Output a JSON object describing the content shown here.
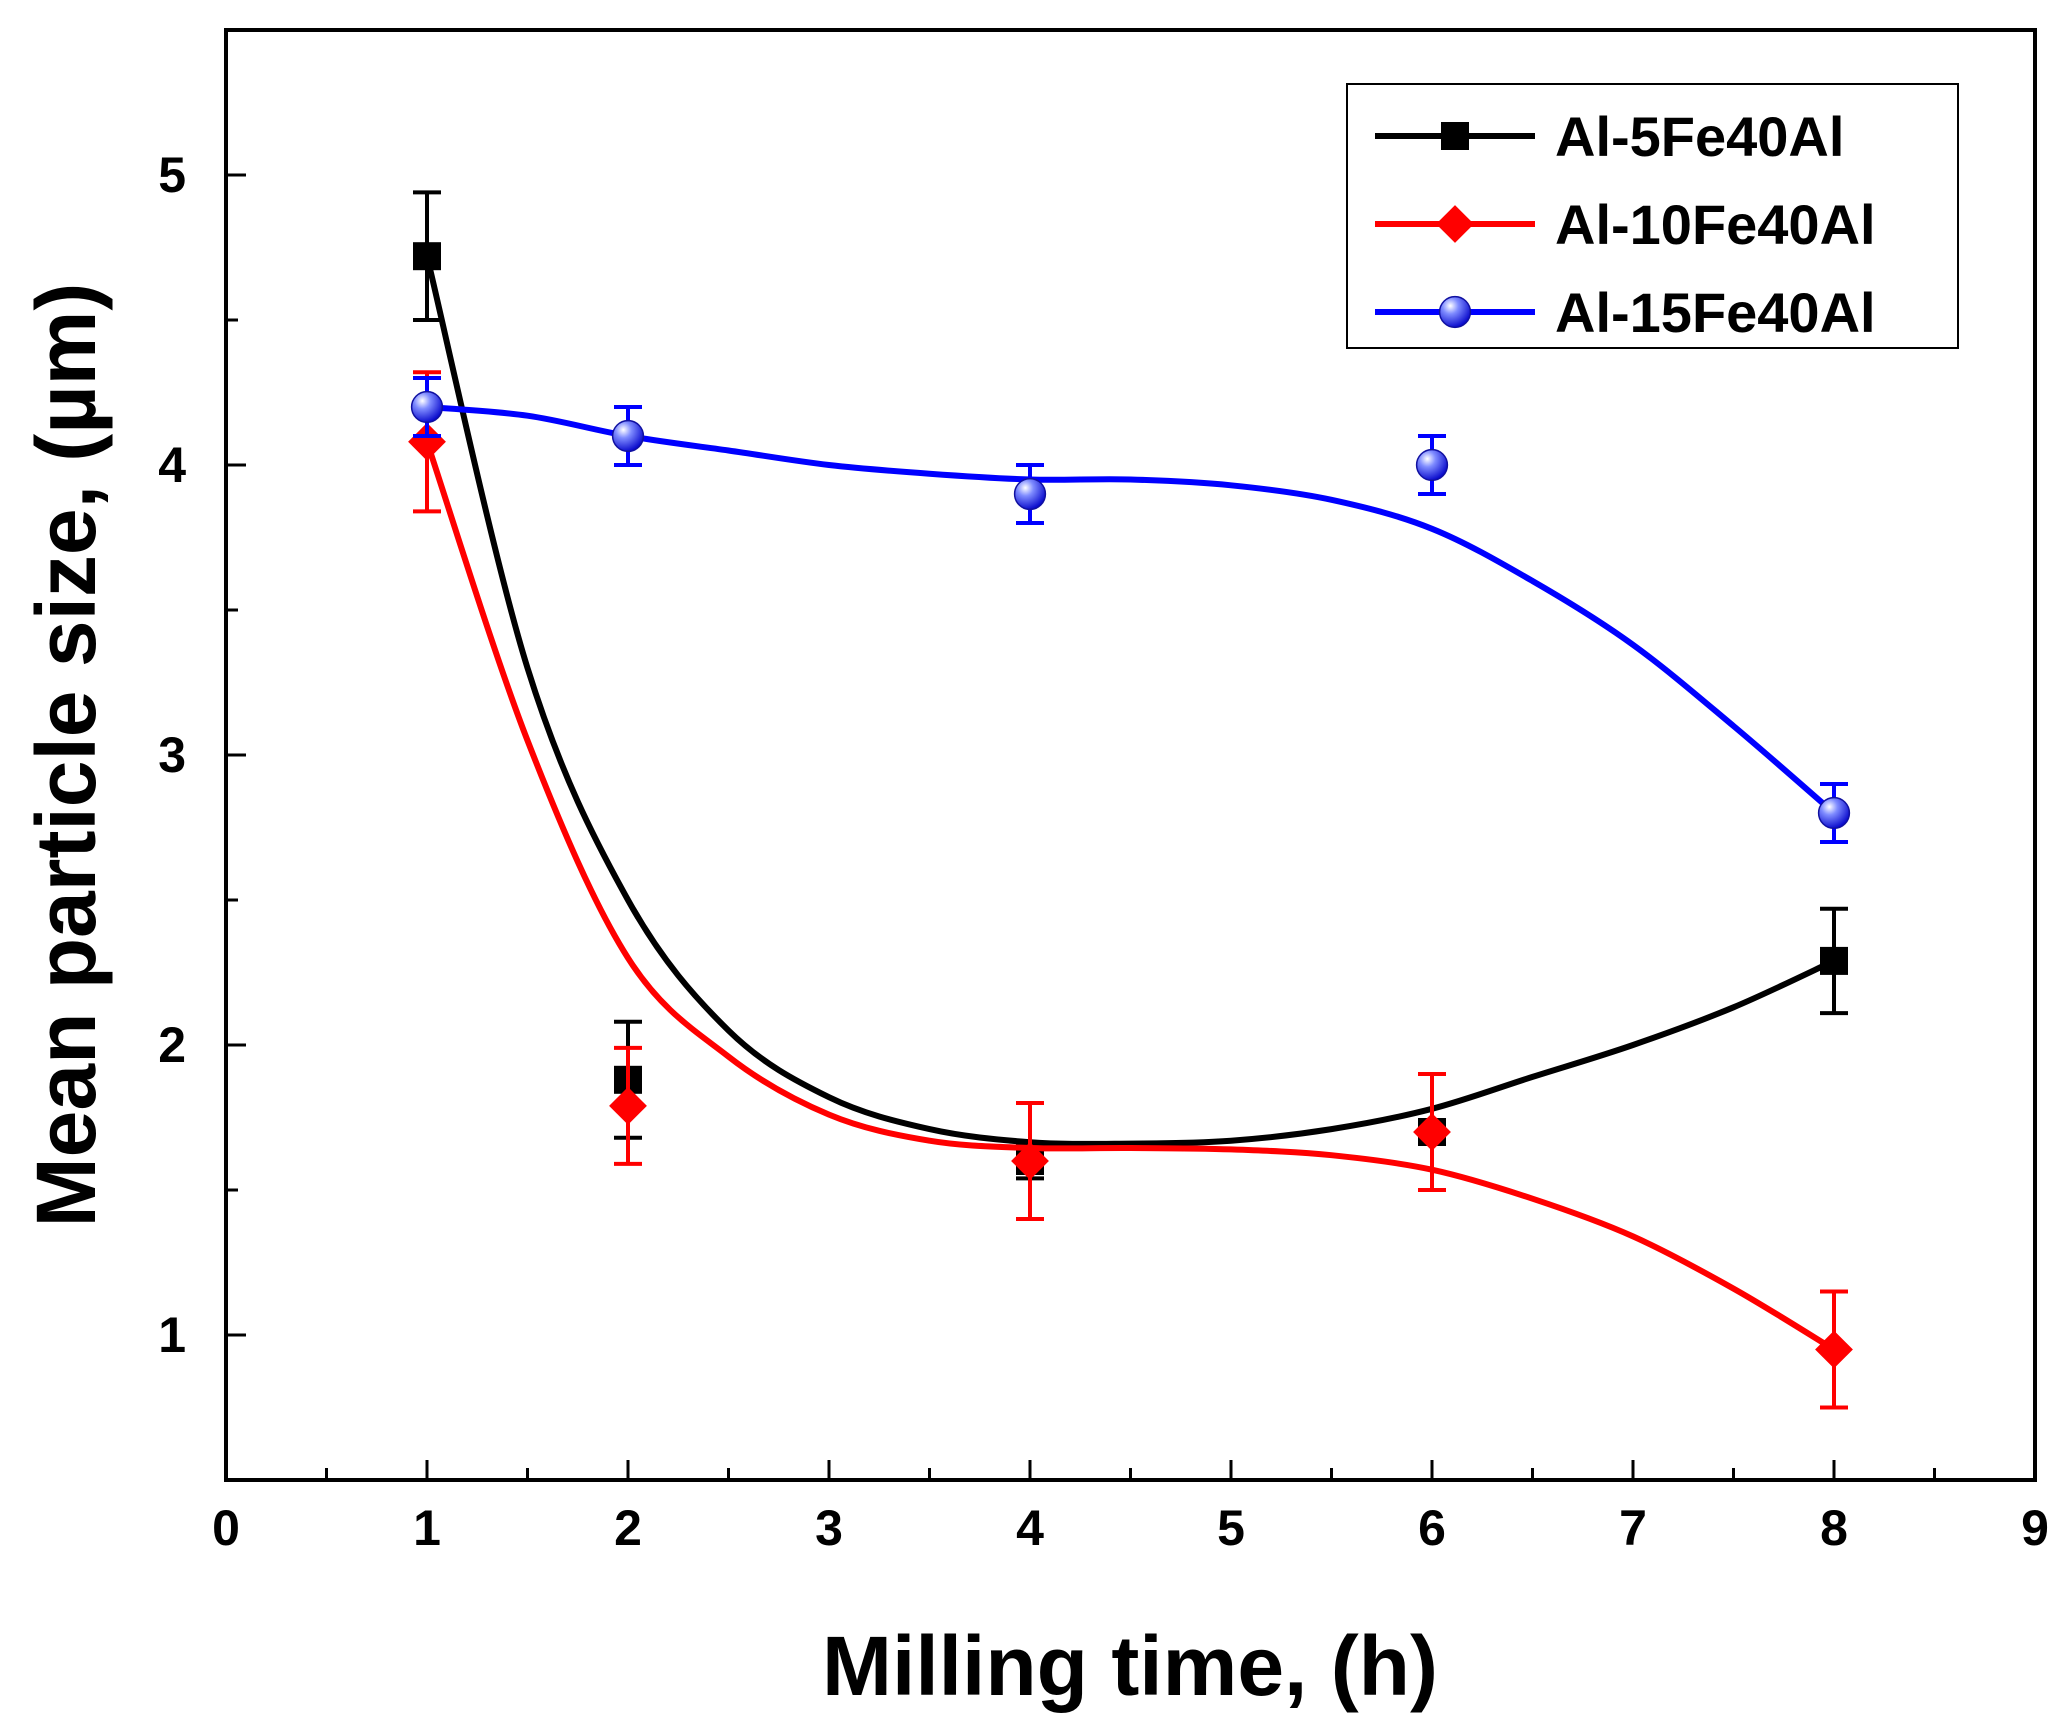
{
  "chart_data": {
    "type": "line",
    "title": "",
    "xlabel": "Milling time, (h)",
    "ylabel": "Mean particle size, (µm)",
    "xlim": [
      0,
      9
    ],
    "ylim": [
      0.5,
      5.5
    ],
    "x_major_ticks": [
      0,
      1,
      2,
      3,
      4,
      5,
      6,
      7,
      8,
      9
    ],
    "y_major_ticks": [
      1,
      2,
      3,
      4,
      5
    ],
    "x_tick_labels": [
      "0",
      "1",
      "2",
      "3",
      "4",
      "5",
      "6",
      "7",
      "8",
      "9"
    ],
    "y_tick_labels": [
      "1",
      "2",
      "3",
      "4",
      "5"
    ],
    "grid": false,
    "legend_position": "top-right",
    "series": [
      {
        "name": "Al-5Fe40Al",
        "color": "#000000",
        "marker": "square",
        "x": [
          1,
          2,
          4,
          6,
          8
        ],
        "y": [
          4.72,
          1.88,
          1.6,
          1.7,
          2.29
        ],
        "error": [
          0.22,
          0.2,
          0.06,
          0.2,
          0.18
        ],
        "fit_curve": [
          [
            1,
            4.72
          ],
          [
            1.5,
            3.3
          ],
          [
            2,
            2.5
          ],
          [
            2.5,
            2.05
          ],
          [
            3,
            1.82
          ],
          [
            3.5,
            1.71
          ],
          [
            4,
            1.665
          ],
          [
            4.5,
            1.66
          ],
          [
            5,
            1.67
          ],
          [
            5.5,
            1.71
          ],
          [
            6,
            1.78
          ],
          [
            6.5,
            1.89
          ],
          [
            7,
            2.0
          ],
          [
            7.5,
            2.13
          ],
          [
            8,
            2.29
          ]
        ]
      },
      {
        "name": "Al-10Fe40Al",
        "color": "#ff0000",
        "marker": "diamond",
        "x": [
          1,
          2,
          4,
          6,
          8
        ],
        "y": [
          4.08,
          1.79,
          1.6,
          1.7,
          0.95
        ],
        "error": [
          0.24,
          0.2,
          0.2,
          0.2,
          0.2
        ],
        "fit_curve": [
          [
            1,
            4.08
          ],
          [
            1.5,
            3.05
          ],
          [
            2,
            2.3
          ],
          [
            2.5,
            1.96
          ],
          [
            3,
            1.76
          ],
          [
            3.5,
            1.67
          ],
          [
            4,
            1.645
          ],
          [
            4.5,
            1.645
          ],
          [
            5,
            1.64
          ],
          [
            5.5,
            1.62
          ],
          [
            6,
            1.57
          ],
          [
            6.5,
            1.47
          ],
          [
            7,
            1.34
          ],
          [
            7.5,
            1.16
          ],
          [
            8,
            0.95
          ]
        ]
      },
      {
        "name": "Al-15Fe40Al",
        "color": "#0000ff",
        "marker": "circle",
        "x": [
          1,
          2,
          4,
          6,
          8
        ],
        "y": [
          4.2,
          4.1,
          3.9,
          4.0,
          2.8
        ],
        "error": [
          0.1,
          0.1,
          0.1,
          0.1,
          0.1
        ],
        "fit_curve": [
          [
            1,
            4.2
          ],
          [
            1.5,
            4.17
          ],
          [
            2,
            4.1
          ],
          [
            2.5,
            4.05
          ],
          [
            3,
            4.0
          ],
          [
            3.5,
            3.97
          ],
          [
            4,
            3.95
          ],
          [
            4.5,
            3.95
          ],
          [
            5,
            3.93
          ],
          [
            5.5,
            3.88
          ],
          [
            6,
            3.78
          ],
          [
            6.5,
            3.6
          ],
          [
            7,
            3.38
          ],
          [
            7.5,
            3.1
          ],
          [
            8,
            2.8
          ]
        ]
      }
    ]
  }
}
